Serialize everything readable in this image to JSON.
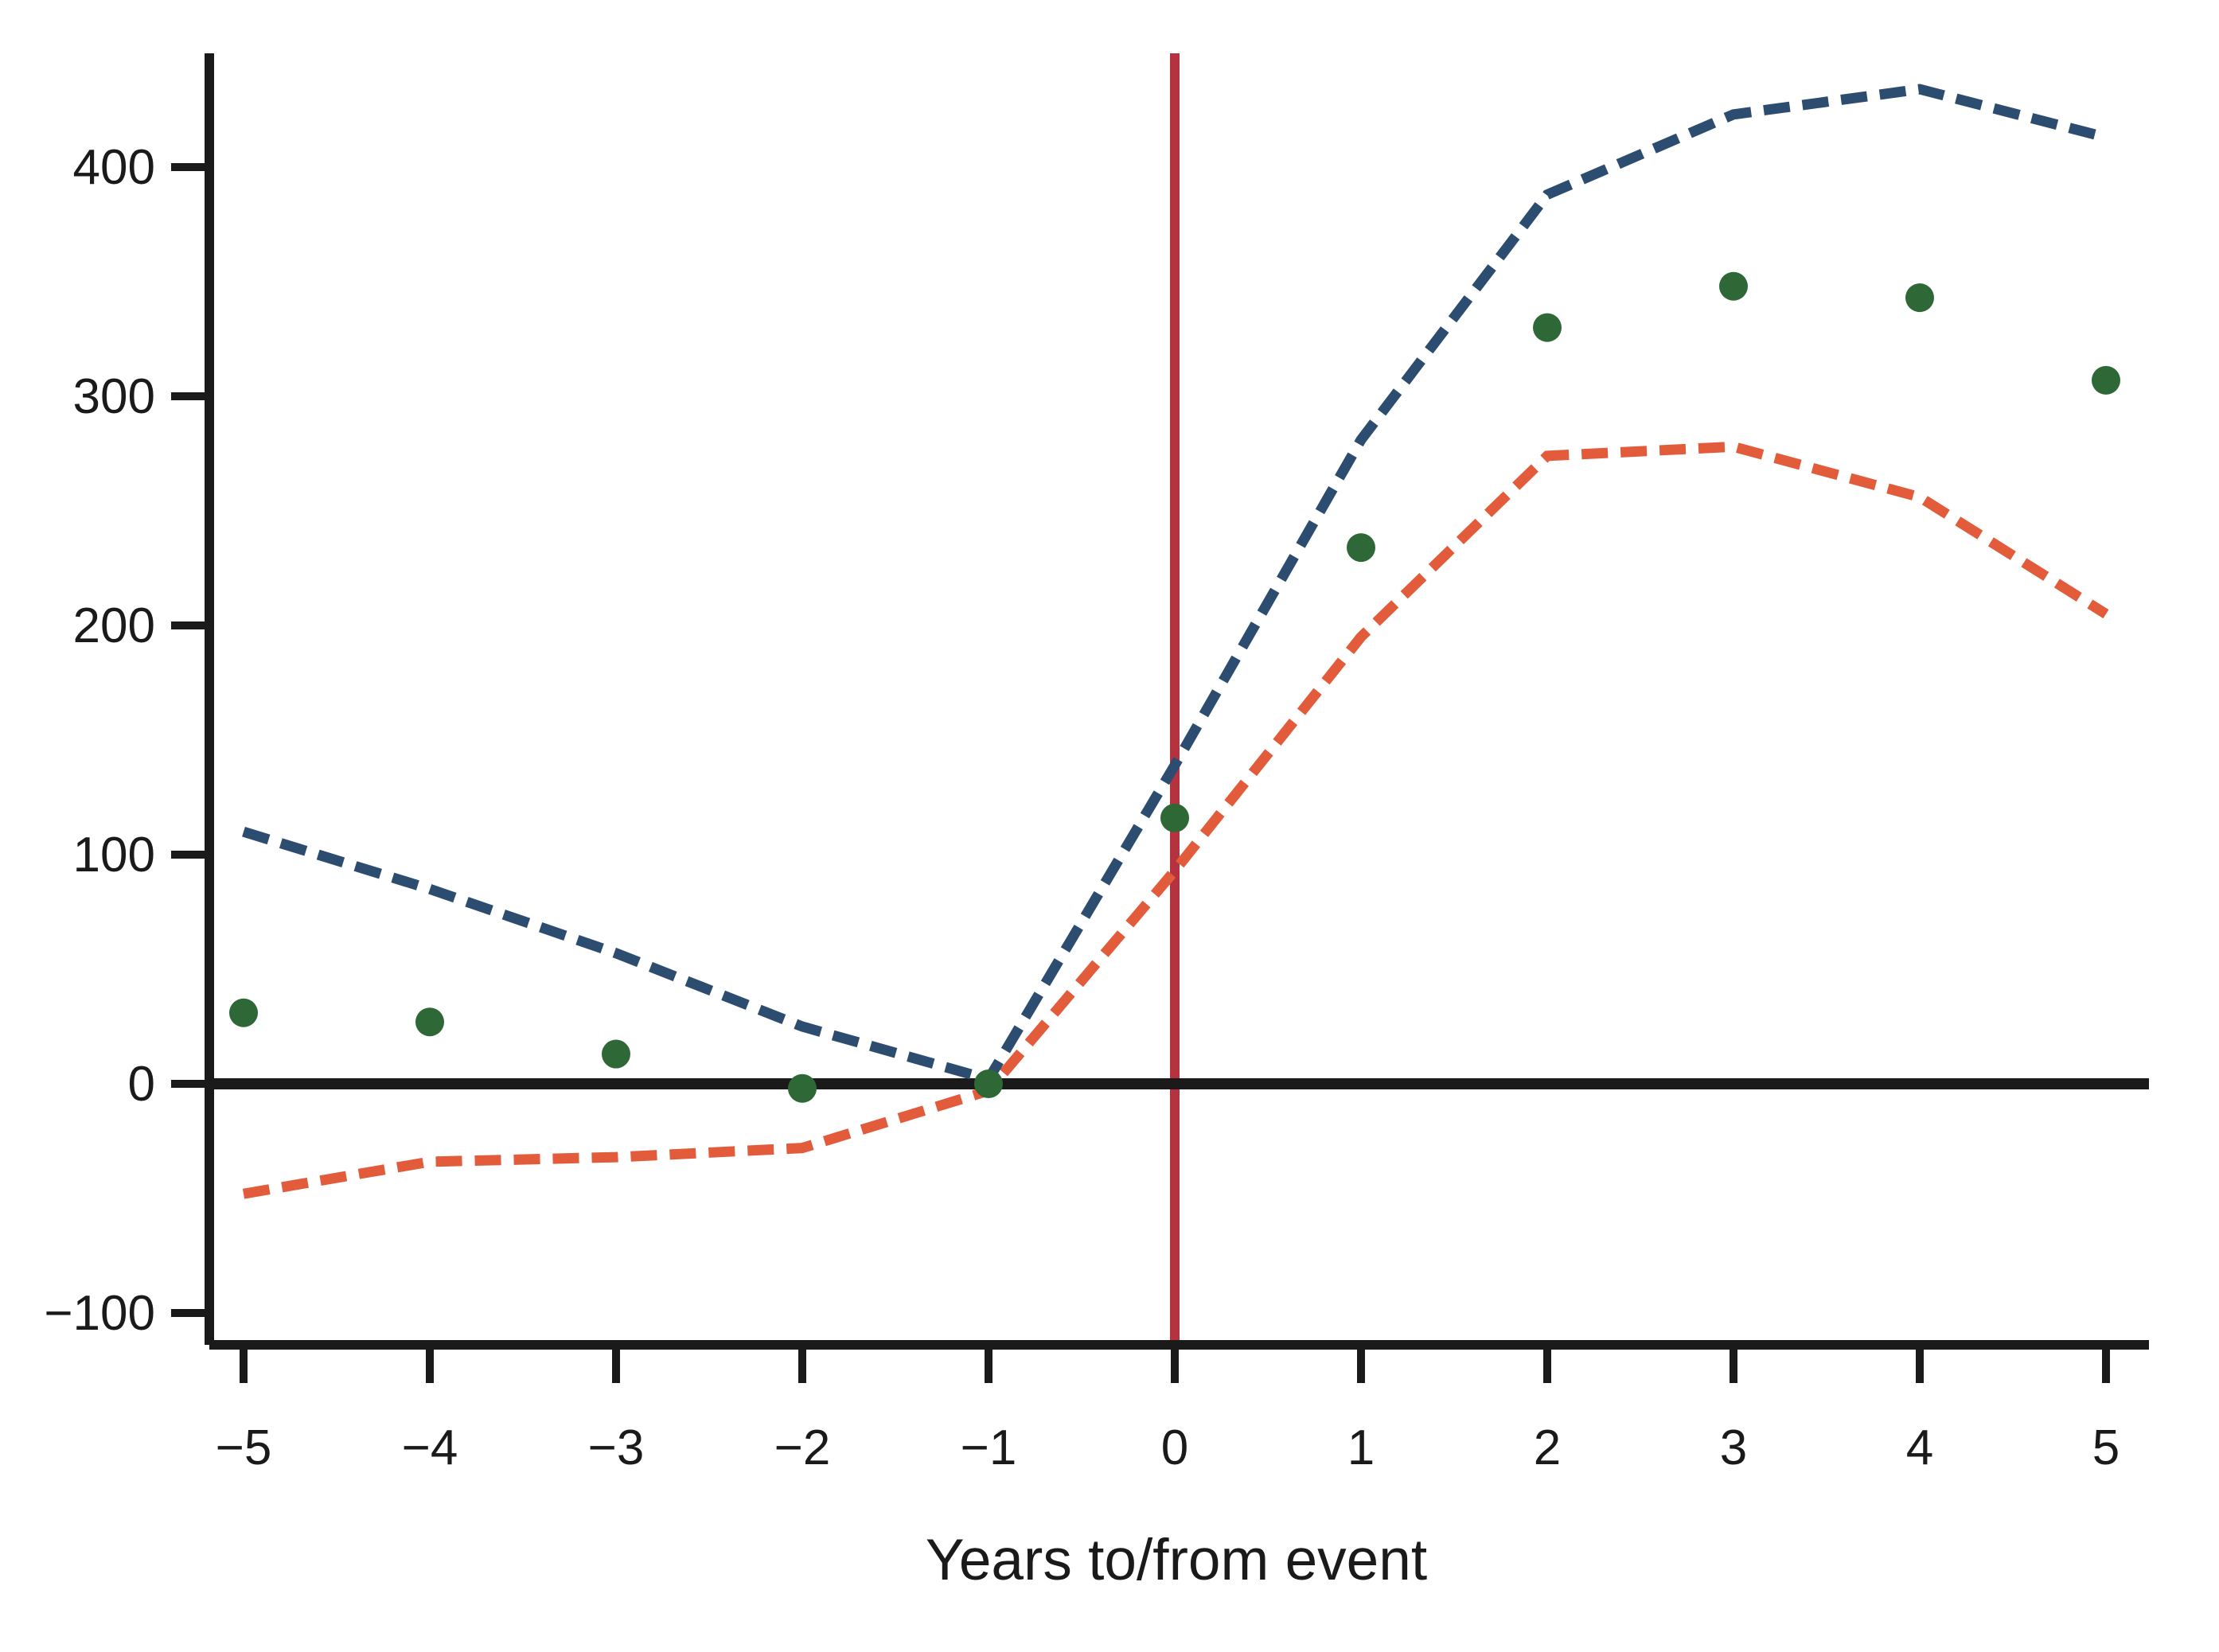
{
  "figure": {
    "background": "#ffffff",
    "text_color": "#1a1a1a"
  },
  "chart_data": {
    "type": "line",
    "subtype": "event-study: scatter points with dashed upper/lower band lines",
    "title": "",
    "xlabel": "Years to/from event",
    "ylabel": "",
    "x": [
      -5,
      -4,
      -3,
      -2,
      -1,
      0,
      1,
      2,
      3,
      4,
      5
    ],
    "series": [
      {
        "name": "point estimates (green dots)",
        "style": "scatter",
        "marker": "circle",
        "color": "#2E6837",
        "values": [
          31,
          27,
          13,
          -2,
          0,
          116,
          234,
          330,
          348,
          343,
          307
        ]
      },
      {
        "name": "upper dashed line (blue)",
        "style": "dashed-line",
        "color": "#2C4D70",
        "values": [
          110,
          85,
          57,
          25,
          2,
          139,
          281,
          388,
          423,
          434,
          413
        ]
      },
      {
        "name": "lower dashed line (orange)",
        "style": "dashed-line",
        "color": "#E25C3C",
        "values": [
          -48,
          -34,
          -32,
          -28,
          -3,
          93,
          195,
          274,
          278,
          256,
          205
        ]
      }
    ],
    "x_ticks": {
      "values": [
        -5,
        -4,
        -3,
        -2,
        -1,
        0,
        1,
        2,
        3,
        4,
        5
      ],
      "labels": [
        "−5",
        "−4",
        "−3",
        "−2",
        "−1",
        "0",
        "1",
        "2",
        "3",
        "4",
        "5"
      ]
    },
    "y_ticks": {
      "values": [
        -100,
        0,
        100,
        200,
        300,
        400
      ],
      "labels": [
        "−100",
        "0",
        "100",
        "200",
        "300",
        "400"
      ]
    },
    "xlim": [
      -5.2,
      5.25
    ],
    "ylim": [
      -114,
      450
    ],
    "grid": false,
    "legend": "none",
    "reference_lines": [
      {
        "orientation": "vertical",
        "at_x": 0,
        "color": "#B4333F",
        "style": "solid"
      },
      {
        "orientation": "horizontal",
        "at_y": 0,
        "color": "#1A1A1A",
        "style": "solid"
      }
    ],
    "axis_color": "#1A1A1A"
  }
}
